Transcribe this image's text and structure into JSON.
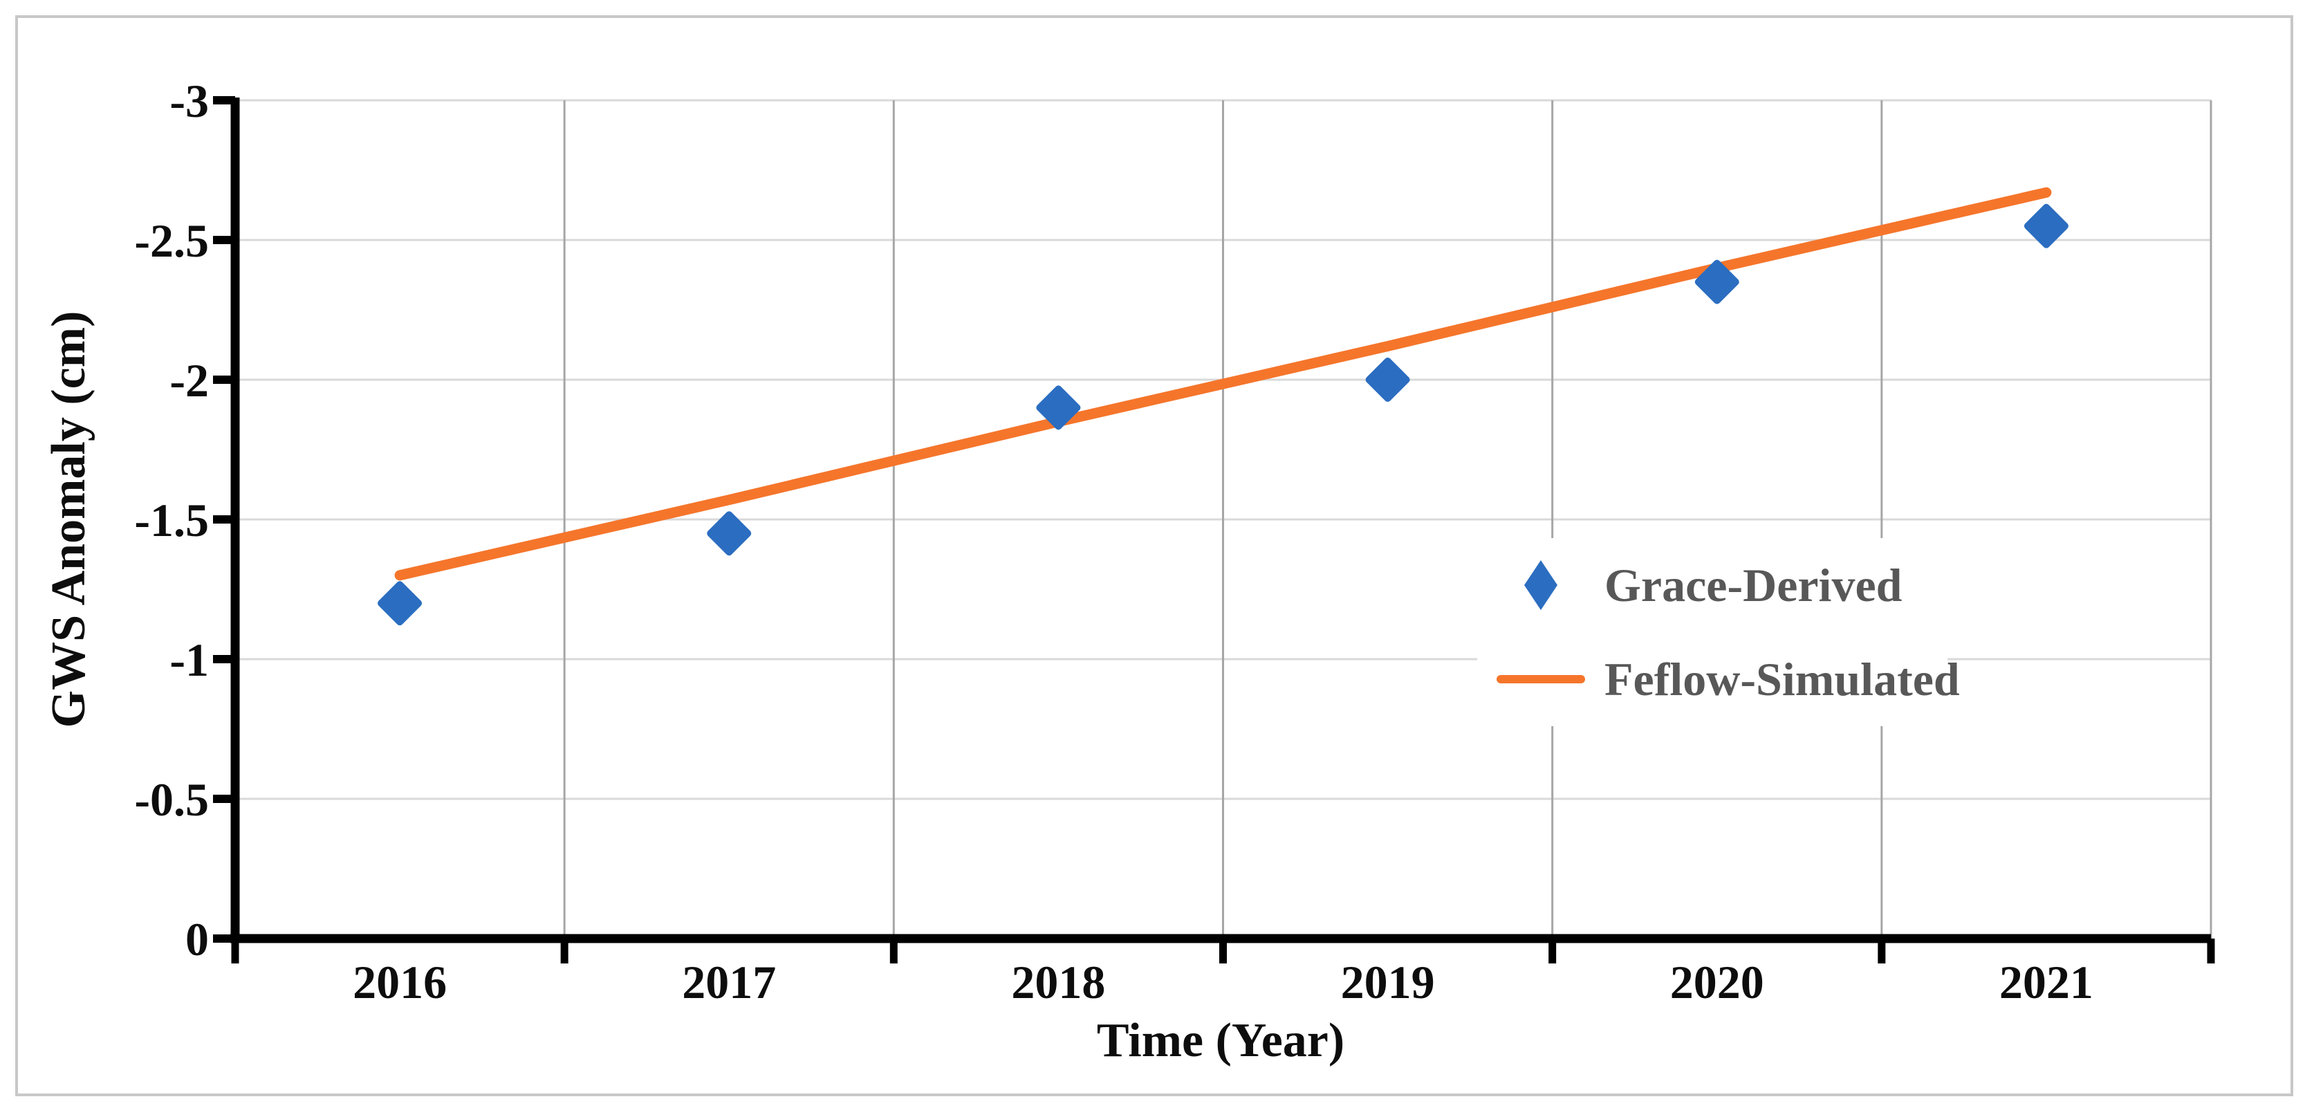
{
  "chart_data": {
    "type": "scatter",
    "title": "",
    "xlabel": "Time (Year)",
    "ylabel": "GWS Anomaly (cm)",
    "categories": [
      "2016",
      "2017",
      "2018",
      "2019",
      "2020",
      "2021"
    ],
    "y_ticks": [
      -3,
      -2.5,
      -2,
      -1.5,
      -1,
      -0.5,
      0
    ],
    "y_tick_labels": [
      "-3",
      "-2.5",
      "-2",
      "-1.5",
      "-1",
      "-0.5",
      "0"
    ],
    "ylim": [
      0,
      -3
    ],
    "y_axis_reversed": true,
    "grid": true,
    "legend_position": "inside-right",
    "series": [
      {
        "name": "Grace-Derived",
        "type": "scatter",
        "marker": "diamond",
        "color_key": "marker_blue",
        "values": [
          -1.2,
          -1.45,
          -1.9,
          -2.0,
          -2.35,
          -2.55
        ]
      },
      {
        "name": "Feflow-Simulated",
        "type": "line",
        "color_key": "line_orange",
        "values": [
          -1.3,
          -1.57,
          -1.85,
          -2.12,
          -2.4,
          -2.67
        ]
      }
    ]
  },
  "colors": {
    "marker_blue": "#2B6DC0",
    "line_orange": "#F5752B",
    "legend_text": "#585858",
    "axis_text": "#0D0D0D",
    "grid_horizontal": "#D9D9D9",
    "grid_vertical": "#A6A6A6",
    "axis_line": "#000000",
    "figure_border": "#C8C8C8",
    "background": "#FFFFFF"
  }
}
